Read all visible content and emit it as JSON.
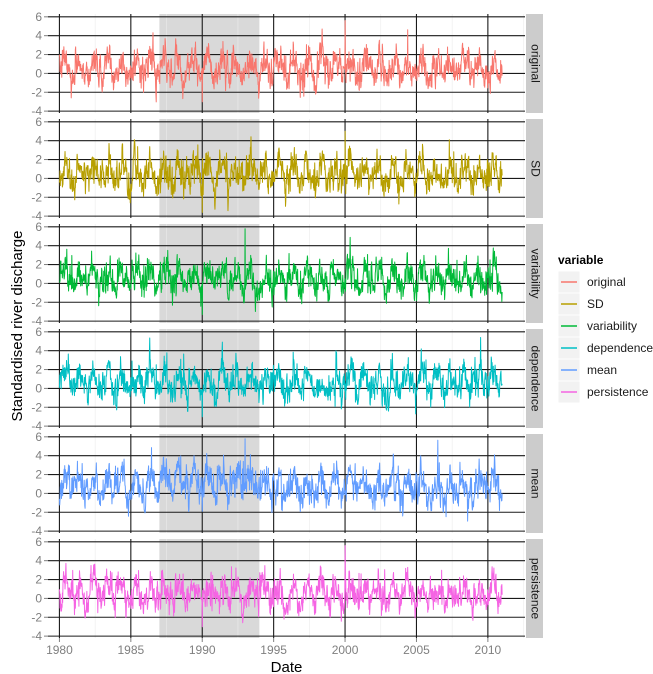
{
  "chart_data": {
    "type": "line",
    "layout": "faceted-rows",
    "xlabel": "Date",
    "ylabel": "Standardised river discharge",
    "xlim": [
      1979.2,
      2012.6
    ],
    "ylim": [
      -4.2,
      6.3
    ],
    "x_ticks": [
      1980,
      1985,
      1990,
      1995,
      2000,
      2005,
      2010
    ],
    "x_tick_labels": [
      "1980",
      "1985",
      "1990",
      "1995",
      "2000",
      "2005",
      "2010"
    ],
    "y_ticks": [
      -4,
      -2,
      0,
      2,
      4,
      6
    ],
    "y_tick_labels": [
      "-4",
      "-2",
      "0",
      "2",
      "4",
      "6"
    ],
    "x_range": [
      1980,
      2011
    ],
    "highlight_period": [
      1987,
      1994
    ],
    "highlight_color": "#d9d9d9",
    "grid": true,
    "legend": {
      "title": "variable",
      "position": "right",
      "entries": [
        "original",
        "SD",
        "variability",
        "dependence",
        "mean",
        "persistence"
      ]
    },
    "series": [
      {
        "name": "original",
        "color": "#F8766D",
        "peak": [
          2000.0,
          5.6
        ],
        "trough": [
          1990.0,
          -3.0
        ],
        "mean_level": 0.55
      },
      {
        "name": "SD",
        "color": "#B79F00",
        "peak": [
          2000.0,
          5.0
        ],
        "trough": [
          1990.0,
          -3.6
        ],
        "mean_level": 0.5
      },
      {
        "name": "variability",
        "color": "#00BA38",
        "peak": [
          1993.0,
          5.8
        ],
        "trough": [
          1990.0,
          -3.3
        ],
        "mean_level": 0.55
      },
      {
        "name": "dependence",
        "color": "#00BFC4",
        "peak": [
          2009.5,
          5.4
        ],
        "trough": [
          1990.0,
          -3.0
        ],
        "mean_level": 0.55
      },
      {
        "name": "mean",
        "color": "#619CFF",
        "peak": [
          1993.0,
          5.8
        ],
        "trough": [
          1990.0,
          -1.9
        ],
        "mean_level": 0.7
      },
      {
        "name": "persistence",
        "color": "#F564E3",
        "peak": [
          2000.0,
          5.6
        ],
        "trough": [
          1990.0,
          -3.0
        ],
        "mean_level": 0.55
      }
    ]
  }
}
